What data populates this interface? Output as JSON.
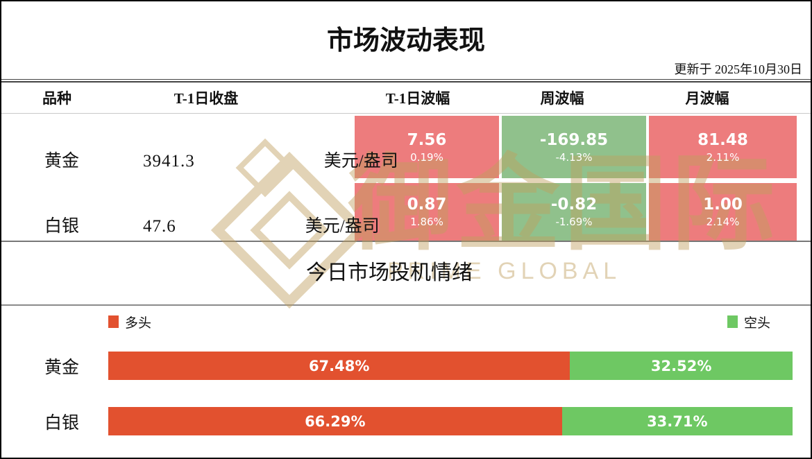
{
  "header": {
    "title": "市场波动表现",
    "updated_label": "更新于",
    "updated_date": "2025年10月30日"
  },
  "table": {
    "columns": [
      "品种",
      "T-1日收盘",
      "T-1日波幅",
      "周波幅",
      "月波幅"
    ],
    "rows": [
      {
        "name": "黄金",
        "close": "3941.3",
        "unit": "美元/盎司",
        "t1": {
          "value": "7.56",
          "pct": "0.19%",
          "dir": "up"
        },
        "week": {
          "value": "-169.85",
          "pct": "-4.13%",
          "dir": "down"
        },
        "month": {
          "value": "81.48",
          "pct": "2.11%",
          "dir": "up"
        }
      },
      {
        "name": "白银",
        "close": "47.6",
        "unit": "美元/盎司",
        "t1": {
          "value": "0.87",
          "pct": "1.86%",
          "dir": "up"
        },
        "week": {
          "value": "-0.82",
          "pct": "-1.69%",
          "dir": "down"
        },
        "month": {
          "value": "1.00",
          "pct": "2.14%",
          "dir": "up"
        }
      }
    ]
  },
  "sentiment": {
    "title": "今日市场投机情绪",
    "legend": {
      "long": "多头",
      "short": "空头"
    },
    "bars": [
      {
        "name": "黄金",
        "long_pct": 67.48,
        "short_pct": 32.52,
        "long_label": "67.48%",
        "short_label": "32.52%"
      },
      {
        "name": "白银",
        "long_pct": 66.29,
        "short_pct": 33.71,
        "long_label": "66.29%",
        "short_label": "33.71%"
      }
    ]
  },
  "watermark": {
    "cn": "御金国际",
    "en": "PRIME GLOBAL"
  },
  "colors": {
    "cell_up": "#ed7c7d",
    "cell_down": "#90c18c",
    "bar_long": "#e2512f",
    "bar_short": "#6ec863",
    "watermark": "#c0a05e"
  },
  "chart_data": [
    {
      "type": "table",
      "title": "市场波动表现",
      "updated": "更新于 2025年10月30日",
      "columns": [
        "品种",
        "T-1日收盘",
        "T-1日波幅",
        "周波幅",
        "月波幅"
      ],
      "rows": [
        [
          "黄金",
          "3941.3 美元/盎司",
          "7.56 (0.19%)",
          "-169.85 (-4.13%)",
          "81.48 (2.11%)"
        ],
        [
          "白银",
          "47.6 美元/盎司",
          "0.87 (1.86%)",
          "-0.82 (-1.69%)",
          "1.00 (2.14%)"
        ]
      ],
      "cell_color_rule": "positive=red(#ed7c7d), negative=green(#90c18c)"
    },
    {
      "type": "bar",
      "title": "今日市场投机情绪",
      "stacked": true,
      "orientation": "horizontal",
      "categories": [
        "黄金",
        "白银"
      ],
      "series": [
        {
          "name": "多头",
          "color": "#e2512f",
          "values": [
            67.48,
            66.29
          ]
        },
        {
          "name": "空头",
          "color": "#6ec863",
          "values": [
            32.52,
            33.71
          ]
        }
      ],
      "unit": "%",
      "xlim": [
        0,
        100
      ],
      "legend_position": "top",
      "grid": false
    }
  ]
}
